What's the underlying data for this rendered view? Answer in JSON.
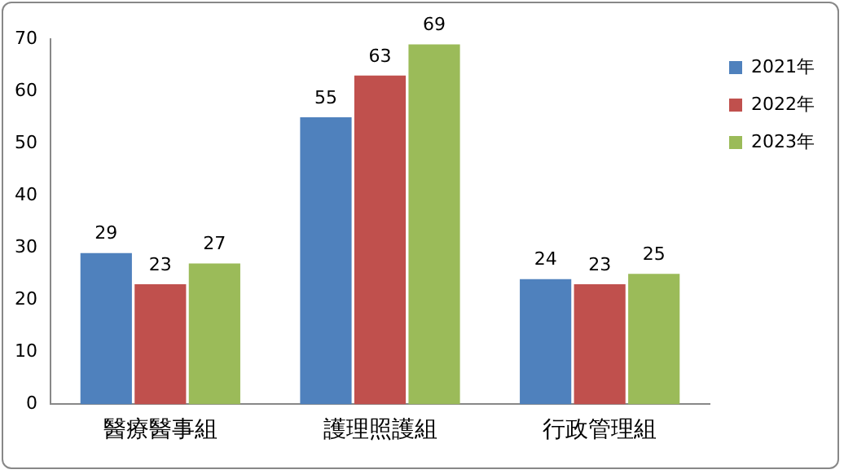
{
  "chart_data": {
    "type": "bar",
    "categories": [
      "醫療醫事組",
      "護理照護組",
      "行政管理組"
    ],
    "series": [
      {
        "name": "2021年",
        "color": "#4f81bd",
        "values": [
          29,
          55,
          24
        ]
      },
      {
        "name": "2022年",
        "color": "#c0504d",
        "values": [
          23,
          63,
          23
        ]
      },
      {
        "name": "2023年",
        "color": "#9bbb59",
        "values": [
          27,
          69,
          25
        ]
      }
    ],
    "ylim": [
      0,
      70
    ],
    "yticks": [
      0,
      10,
      20,
      30,
      40,
      50,
      60,
      70
    ],
    "grid": false,
    "legend": "top right",
    "data_labels": true
  }
}
